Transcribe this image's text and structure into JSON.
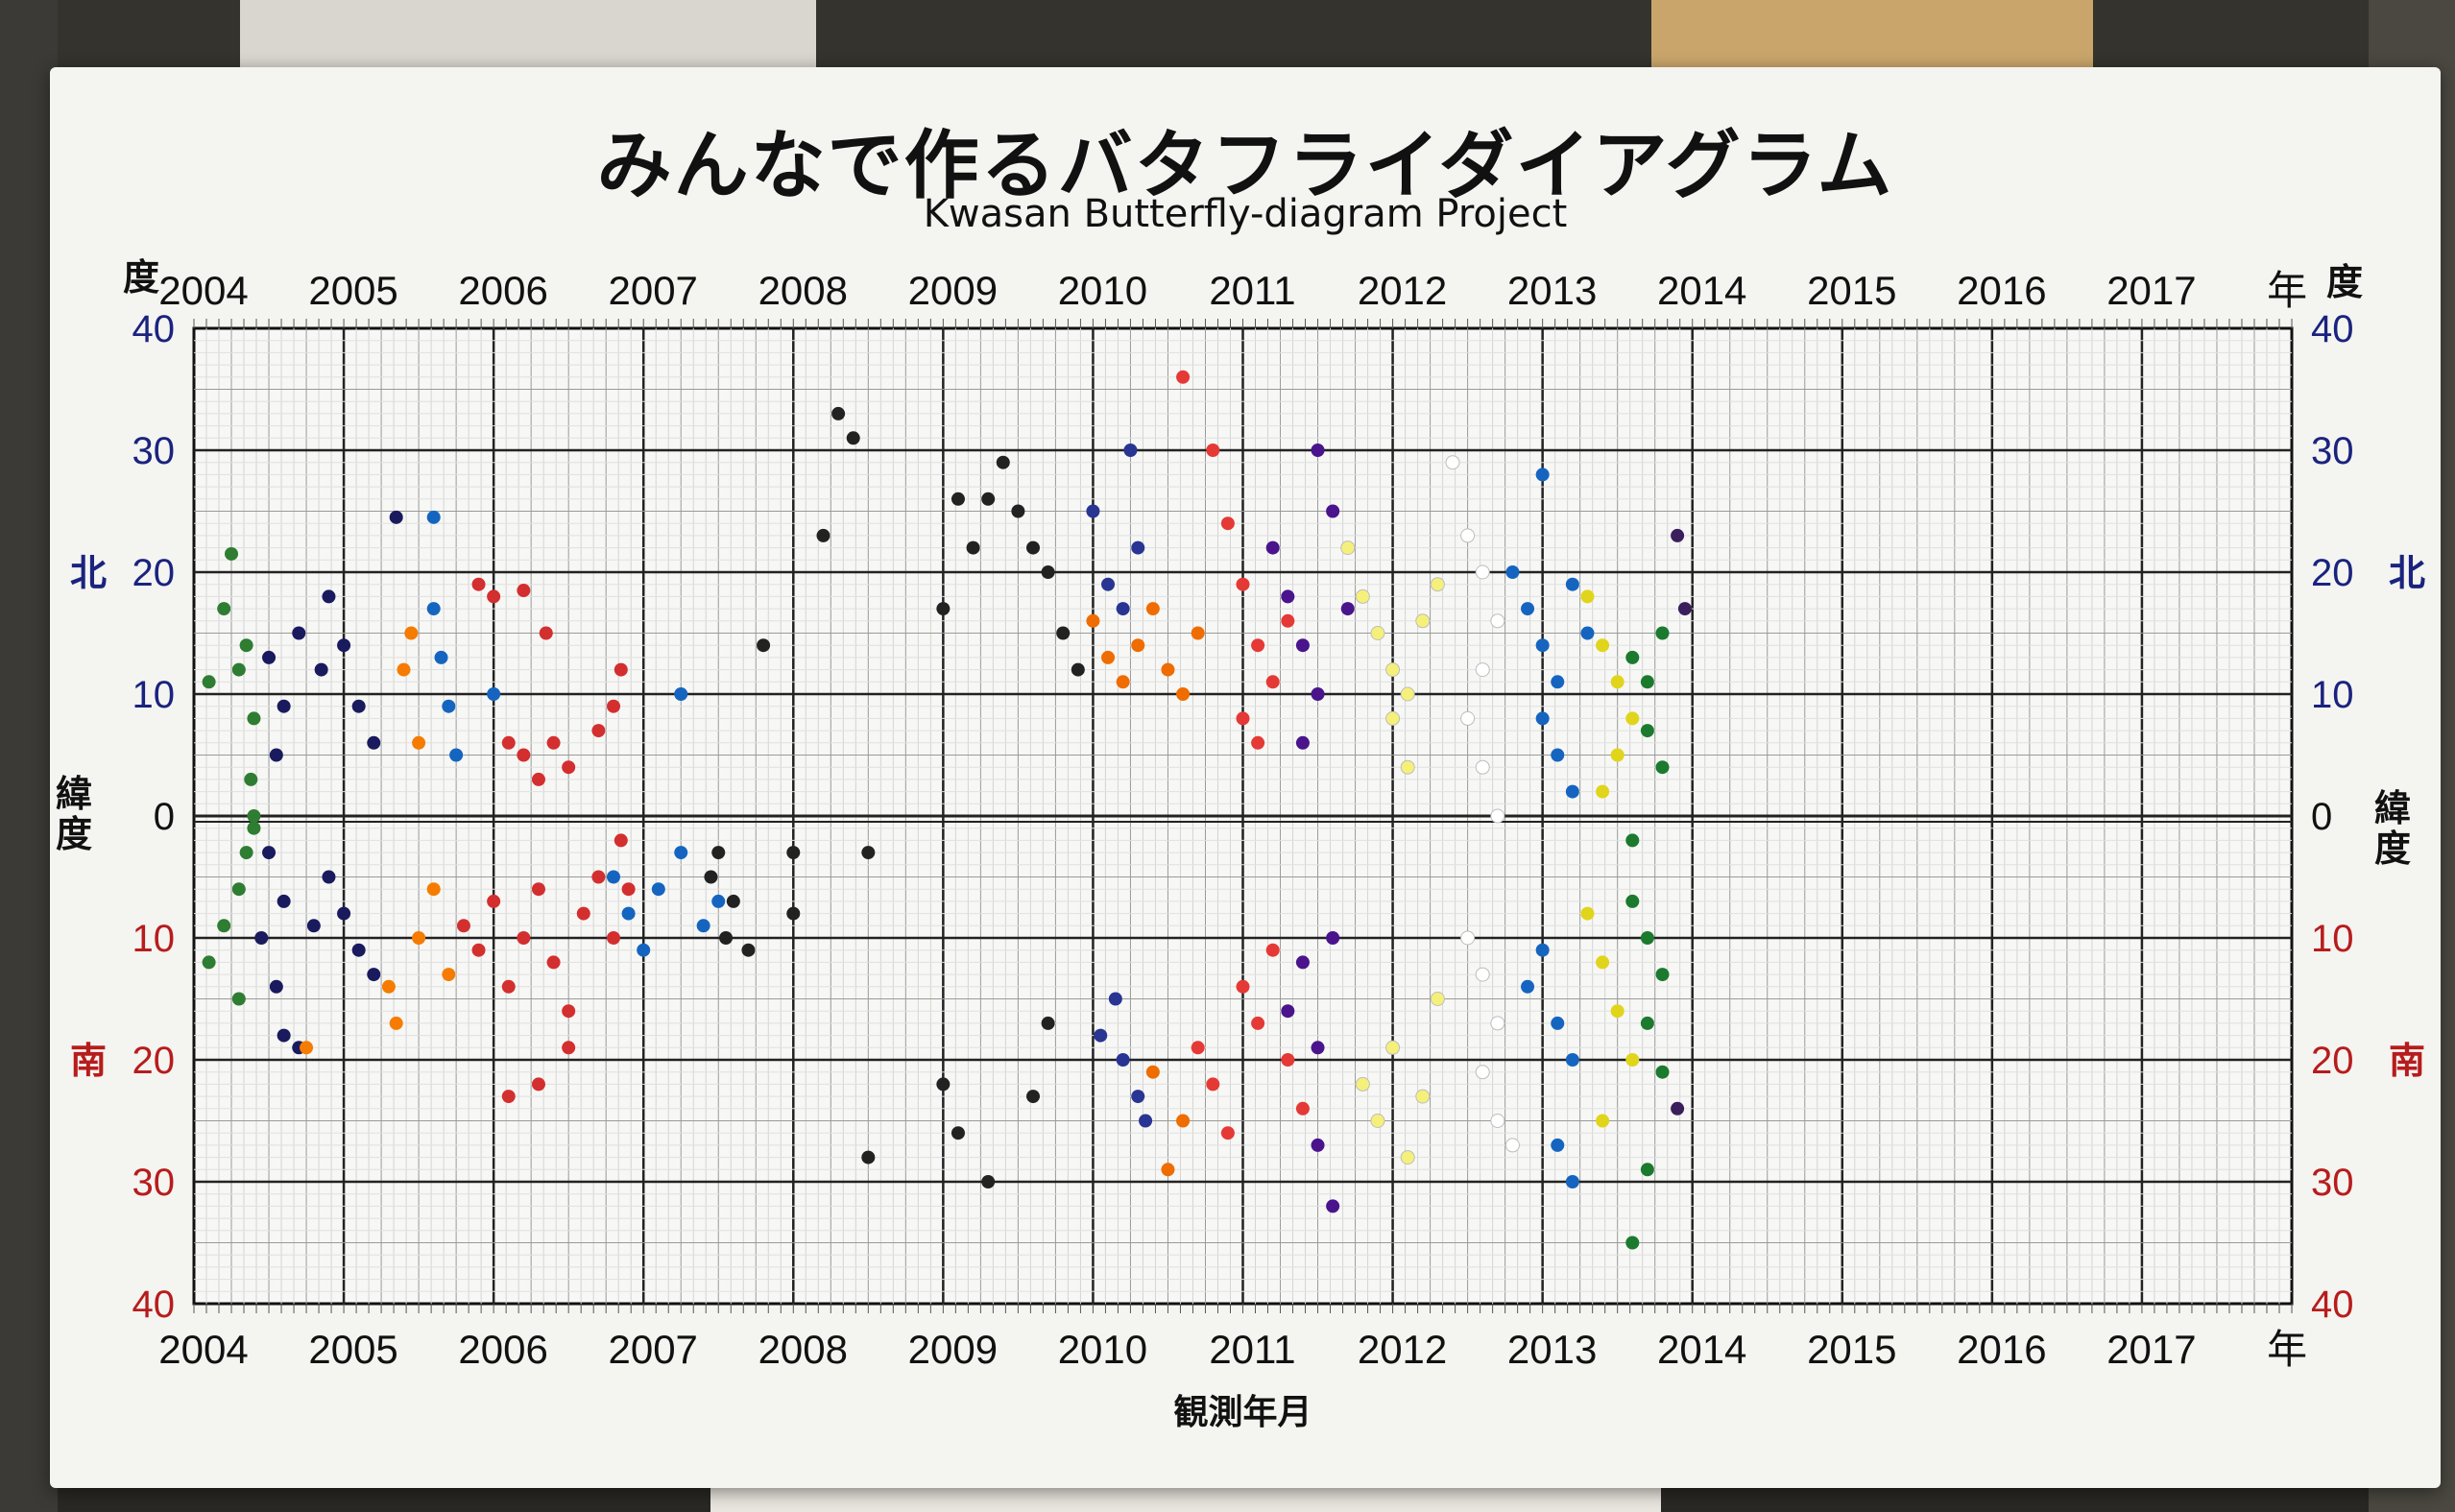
{
  "title": "みんなで作るバタフライダイアグラム",
  "subtitle": "Kwasan Butterfly-diagram Project",
  "colors": {
    "north": "#1a237e",
    "south": "#b71c1c"
  },
  "chart_data": {
    "type": "scatter",
    "title": "みんなで作るバタフライダイアグラム",
    "subtitle": "Kwasan Butterfly-diagram Project",
    "xlabel": "観測年月",
    "year_suffix": "年",
    "xlim": [
      2004,
      2018
    ],
    "x_ticks": [
      "2004",
      "2005",
      "2006",
      "2007",
      "2008",
      "2009",
      "2010",
      "2011",
      "2012",
      "2013",
      "2014",
      "2015",
      "2016",
      "2017"
    ],
    "ylim": [
      -40,
      40
    ],
    "y_ticks": [
      {
        "value": 40,
        "label": "40"
      },
      {
        "value": 30,
        "label": "30"
      },
      {
        "value": 20,
        "label": "20"
      },
      {
        "value": 10,
        "label": "10"
      },
      {
        "value": 0,
        "label": "0"
      },
      {
        "value": -10,
        "label": "10"
      },
      {
        "value": -20,
        "label": "20"
      },
      {
        "value": -30,
        "label": "30"
      },
      {
        "value": -40,
        "label": "40"
      }
    ],
    "y_axis_unit": "度",
    "y_axis_name": "緯度",
    "north_label": "北",
    "south_label": "南",
    "grid": true,
    "series": [
      {
        "color": "#2e7d32",
        "points": [
          [
            2004.1,
            11
          ],
          [
            2004.2,
            17
          ],
          [
            2004.3,
            12
          ],
          [
            2004.25,
            21.5
          ],
          [
            2004.35,
            14
          ],
          [
            2004.4,
            8
          ],
          [
            2004.38,
            3
          ],
          [
            2004.4,
            0
          ],
          [
            2004.35,
            -3
          ],
          [
            2004.3,
            -6
          ],
          [
            2004.2,
            -9
          ],
          [
            2004.1,
            -12
          ],
          [
            2004.3,
            -15
          ],
          [
            2004.4,
            -1
          ]
        ]
      },
      {
        "color": "#1a1a5e",
        "points": [
          [
            2004.5,
            13
          ],
          [
            2004.6,
            9
          ],
          [
            2004.55,
            5
          ],
          [
            2004.7,
            15
          ],
          [
            2004.85,
            12
          ],
          [
            2004.9,
            18
          ],
          [
            2005.0,
            14
          ],
          [
            2005.1,
            9
          ],
          [
            2005.2,
            6
          ],
          [
            2005.35,
            24.5
          ],
          [
            2004.5,
            -3
          ],
          [
            2004.6,
            -7
          ],
          [
            2004.45,
            -10
          ],
          [
            2004.55,
            -14
          ],
          [
            2004.6,
            -18
          ],
          [
            2004.8,
            -9
          ],
          [
            2004.9,
            -5
          ],
          [
            2005.0,
            -8
          ],
          [
            2005.1,
            -11
          ],
          [
            2005.2,
            -13
          ],
          [
            2004.7,
            -19
          ]
        ]
      },
      {
        "color": "#f57c00",
        "points": [
          [
            2005.4,
            12
          ],
          [
            2005.45,
            15
          ],
          [
            2005.5,
            6
          ],
          [
            2004.75,
            -19
          ],
          [
            2005.3,
            -14
          ],
          [
            2005.35,
            -17
          ],
          [
            2005.5,
            -10
          ],
          [
            2005.6,
            -6
          ],
          [
            2005.7,
            -13
          ]
        ]
      },
      {
        "color": "#1565c0",
        "points": [
          [
            2005.6,
            17
          ],
          [
            2005.65,
            13
          ],
          [
            2005.7,
            9
          ],
          [
            2005.75,
            5
          ],
          [
            2005.6,
            24.5
          ],
          [
            2006.0,
            10
          ],
          [
            2006.8,
            -5
          ],
          [
            2006.9,
            -8
          ],
          [
            2007.0,
            -11
          ],
          [
            2007.1,
            -6
          ],
          [
            2007.25,
            -3
          ],
          [
            2007.4,
            -9
          ],
          [
            2007.5,
            -7
          ],
          [
            2007.25,
            10
          ]
        ]
      },
      {
        "color": "#d32f2f",
        "points": [
          [
            2005.9,
            19
          ],
          [
            2006.0,
            18
          ],
          [
            2006.2,
            18.5
          ],
          [
            2006.35,
            15
          ],
          [
            2006.1,
            6
          ],
          [
            2006.2,
            5
          ],
          [
            2006.3,
            3
          ],
          [
            2006.4,
            6
          ],
          [
            2006.5,
            4
          ],
          [
            2006.7,
            7
          ],
          [
            2006.8,
            9
          ],
          [
            2006.85,
            12
          ],
          [
            2005.8,
            -9
          ],
          [
            2005.9,
            -11
          ],
          [
            2006.0,
            -7
          ],
          [
            2006.1,
            -14
          ],
          [
            2006.2,
            -10
          ],
          [
            2006.3,
            -6
          ],
          [
            2006.4,
            -12
          ],
          [
            2006.5,
            -16
          ],
          [
            2006.6,
            -8
          ],
          [
            2006.7,
            -5
          ],
          [
            2006.8,
            -10
          ],
          [
            2006.85,
            -2
          ],
          [
            2006.9,
            -6
          ],
          [
            2006.1,
            -23
          ],
          [
            2006.3,
            -22
          ],
          [
            2006.5,
            -19
          ]
        ]
      },
      {
        "color": "#222222",
        "points": [
          [
            2007.45,
            -5
          ],
          [
            2007.5,
            -3
          ],
          [
            2007.55,
            -10
          ],
          [
            2007.6,
            -7
          ],
          [
            2007.7,
            -11
          ],
          [
            2007.8,
            14
          ],
          [
            2008.0,
            -3
          ],
          [
            2008.0,
            -8
          ],
          [
            2008.3,
            33
          ],
          [
            2008.4,
            31
          ],
          [
            2008.2,
            23
          ],
          [
            2008.5,
            -3
          ],
          [
            2009.1,
            26
          ],
          [
            2009.0,
            17
          ],
          [
            2009.2,
            22
          ],
          [
            2009.3,
            26
          ],
          [
            2009.4,
            29
          ],
          [
            2009.5,
            25
          ],
          [
            2009.6,
            22
          ],
          [
            2009.7,
            20
          ],
          [
            2009.8,
            15
          ],
          [
            2009.9,
            12
          ],
          [
            2009.0,
            -22
          ],
          [
            2009.1,
            -26
          ],
          [
            2009.3,
            -30
          ],
          [
            2008.5,
            -28
          ],
          [
            2009.6,
            -23
          ],
          [
            2009.7,
            -17
          ]
        ]
      },
      {
        "color": "#283593",
        "points": [
          [
            2010.0,
            25
          ],
          [
            2010.1,
            19
          ],
          [
            2010.2,
            17
          ],
          [
            2010.25,
            30
          ],
          [
            2010.3,
            22
          ],
          [
            2010.15,
            -15
          ],
          [
            2010.2,
            -20
          ],
          [
            2010.3,
            -23
          ],
          [
            2010.35,
            -25
          ],
          [
            2010.05,
            -18
          ]
        ]
      },
      {
        "color": "#ef6c00",
        "points": [
          [
            2010.0,
            16
          ],
          [
            2010.1,
            13
          ],
          [
            2010.2,
            11
          ],
          [
            2010.3,
            14
          ],
          [
            2010.4,
            17
          ],
          [
            2010.5,
            12
          ],
          [
            2010.6,
            10
          ],
          [
            2010.7,
            15
          ],
          [
            2010.4,
            -21
          ],
          [
            2010.5,
            -29
          ],
          [
            2010.6,
            -25
          ]
        ]
      },
      {
        "color": "#e53935",
        "points": [
          [
            2010.6,
            36
          ],
          [
            2010.8,
            30
          ],
          [
            2010.9,
            24
          ],
          [
            2011.0,
            19
          ],
          [
            2011.1,
            14
          ],
          [
            2011.2,
            11
          ],
          [
            2011.3,
            16
          ],
          [
            2011.0,
            8
          ],
          [
            2011.1,
            6
          ],
          [
            2010.7,
            -19
          ],
          [
            2010.8,
            -22
          ],
          [
            2010.9,
            -26
          ],
          [
            2011.0,
            -14
          ],
          [
            2011.1,
            -17
          ],
          [
            2011.2,
            -11
          ],
          [
            2011.3,
            -20
          ],
          [
            2011.4,
            -24
          ]
        ]
      },
      {
        "color": "#4a148c",
        "points": [
          [
            2011.2,
            22
          ],
          [
            2011.3,
            18
          ],
          [
            2011.4,
            14
          ],
          [
            2011.5,
            10
          ],
          [
            2011.4,
            6
          ],
          [
            2011.5,
            30
          ],
          [
            2011.6,
            25
          ],
          [
            2011.7,
            17
          ],
          [
            2011.3,
            -16
          ],
          [
            2011.4,
            -12
          ],
          [
            2011.5,
            -19
          ],
          [
            2011.6,
            -10
          ],
          [
            2011.5,
            -27
          ],
          [
            2011.6,
            -32
          ]
        ]
      },
      {
        "color": "#f5f07a",
        "points": [
          [
            2011.7,
            22
          ],
          [
            2011.8,
            18
          ],
          [
            2011.9,
            15
          ],
          [
            2012.0,
            12
          ],
          [
            2012.1,
            10
          ],
          [
            2012.2,
            16
          ],
          [
            2012.3,
            19
          ],
          [
            2012.0,
            8
          ],
          [
            2012.1,
            4
          ],
          [
            2011.8,
            -22
          ],
          [
            2011.9,
            -25
          ],
          [
            2012.0,
            -19
          ],
          [
            2012.1,
            -28
          ],
          [
            2012.2,
            -23
          ],
          [
            2012.3,
            -15
          ]
        ]
      },
      {
        "color": "#ffffff",
        "points": [
          [
            2012.4,
            29
          ],
          [
            2012.5,
            23
          ],
          [
            2012.6,
            20
          ],
          [
            2012.7,
            16
          ],
          [
            2012.6,
            12
          ],
          [
            2012.5,
            8
          ],
          [
            2012.6,
            4
          ],
          [
            2012.7,
            0
          ],
          [
            2012.5,
            -10
          ],
          [
            2012.6,
            -13
          ],
          [
            2012.7,
            -17
          ],
          [
            2012.6,
            -21
          ],
          [
            2012.7,
            -25
          ],
          [
            2012.8,
            -27
          ]
        ]
      },
      {
        "color": "#1565c0",
        "points": [
          [
            2012.8,
            20
          ],
          [
            2012.9,
            17
          ],
          [
            2013.0,
            14
          ],
          [
            2013.1,
            11
          ],
          [
            2013.0,
            8
          ],
          [
            2013.1,
            5
          ],
          [
            2013.0,
            28
          ],
          [
            2013.2,
            19
          ],
          [
            2013.3,
            15
          ],
          [
            2013.2,
            2
          ],
          [
            2012.9,
            -14
          ],
          [
            2013.0,
            -11
          ],
          [
            2013.1,
            -17
          ],
          [
            2013.2,
            -20
          ],
          [
            2013.1,
            -27
          ],
          [
            2013.2,
            -30
          ]
        ]
      },
      {
        "color": "#e0d51a",
        "points": [
          [
            2013.3,
            18
          ],
          [
            2013.4,
            14
          ],
          [
            2013.5,
            11
          ],
          [
            2013.6,
            8
          ],
          [
            2013.5,
            5
          ],
          [
            2013.4,
            2
          ],
          [
            2013.3,
            -8
          ],
          [
            2013.4,
            -12
          ],
          [
            2013.5,
            -16
          ],
          [
            2013.6,
            -20
          ],
          [
            2013.4,
            -25
          ]
        ]
      },
      {
        "color": "#1b7a2e",
        "points": [
          [
            2013.6,
            13
          ],
          [
            2013.7,
            11
          ],
          [
            2013.8,
            15
          ],
          [
            2013.7,
            7
          ],
          [
            2013.8,
            4
          ],
          [
            2013.6,
            -7
          ],
          [
            2013.7,
            -10
          ],
          [
            2013.8,
            -13
          ],
          [
            2013.7,
            -17
          ],
          [
            2013.8,
            -21
          ],
          [
            2013.7,
            -29
          ],
          [
            2013.6,
            -35
          ],
          [
            2013.6,
            -2
          ]
        ]
      },
      {
        "color": "#3a1f5c",
        "points": [
          [
            2013.9,
            23
          ],
          [
            2013.95,
            17
          ],
          [
            2013.9,
            -24
          ]
        ]
      }
    ]
  }
}
